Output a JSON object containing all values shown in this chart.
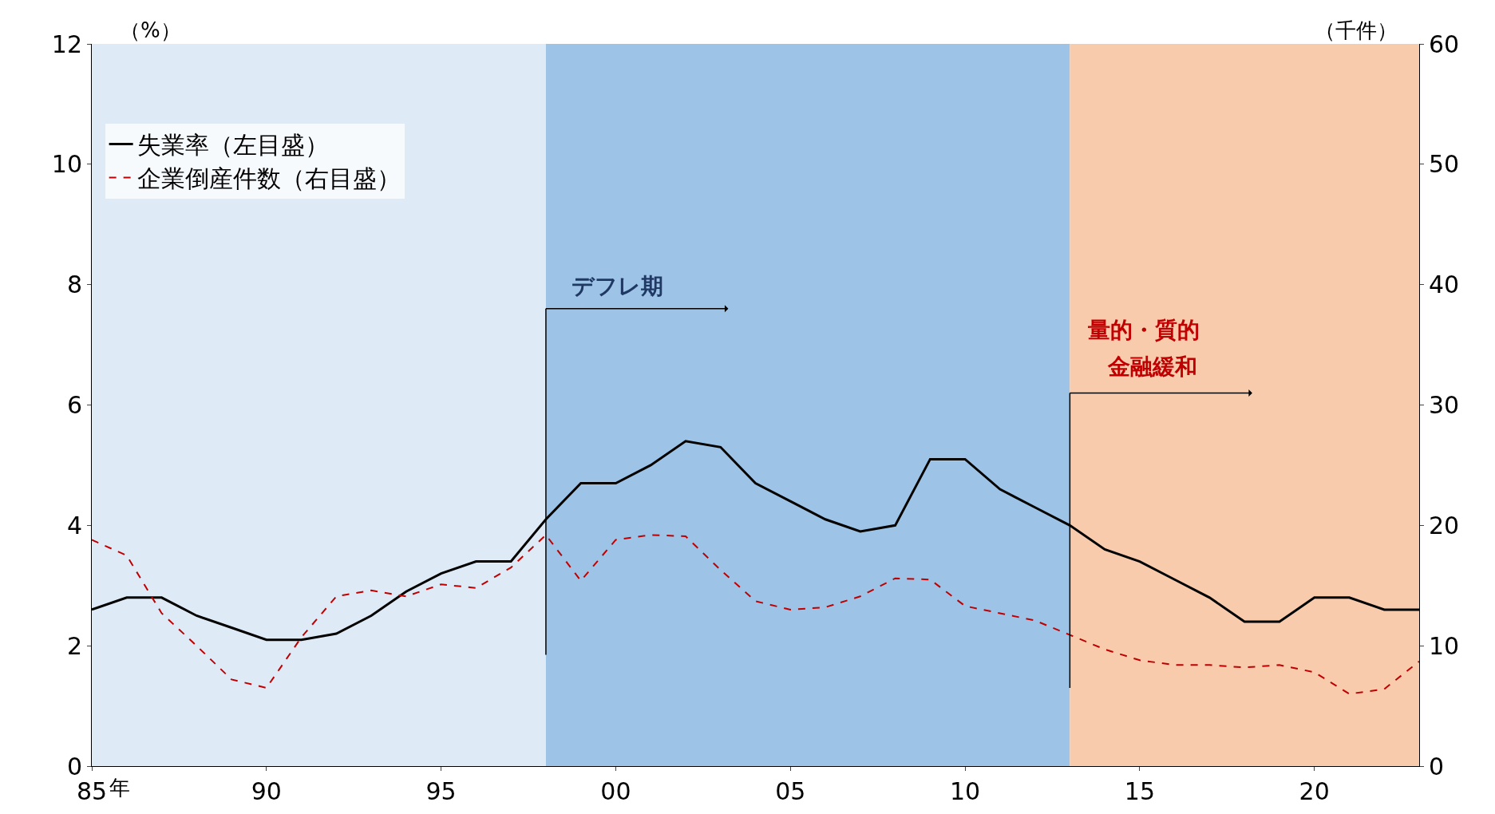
{
  "chart_data": {
    "type": "line",
    "ylabel": "（%）",
    "y2label": "（千件）",
    "x": [
      1985,
      1986,
      1987,
      1988,
      1989,
      1990,
      1991,
      1992,
      1993,
      1994,
      1995,
      1996,
      1997,
      1998,
      1999,
      2000,
      2001,
      2002,
      2003,
      2004,
      2005,
      2006,
      2007,
      2008,
      2009,
      2010,
      2011,
      2012,
      2013,
      2014,
      2015,
      2016,
      2017,
      2018,
      2019,
      2020,
      2021,
      2022,
      2023
    ],
    "series": [
      {
        "name": "失業率（左目盛）",
        "color": "#000000",
        "line_style": "solid",
        "values": [
          2.6,
          2.8,
          2.8,
          2.5,
          2.3,
          2.1,
          2.1,
          2.2,
          2.5,
          2.9,
          3.2,
          3.4,
          3.4,
          4.1,
          4.7,
          4.7,
          5.0,
          5.4,
          5.3,
          4.7,
          4.4,
          4.1,
          3.9,
          4.0,
          5.1,
          5.1,
          4.6,
          4.3,
          4.0,
          3.6,
          3.4,
          3.1,
          2.8,
          2.4,
          2.4,
          2.8,
          2.8,
          2.6,
          2.6
        ]
      },
      {
        "name": "企業倒産件数（右目盛）",
        "color": "#c00000",
        "line_style": "dashed",
        "axis": "y2",
        "values": [
          18.8,
          17.5,
          12.7,
          10.0,
          7.2,
          6.5,
          10.7,
          14.1,
          14.6,
          14.1,
          15.1,
          14.8,
          16.5,
          19.2,
          15.4,
          18.8,
          19.2,
          19.1,
          16.3,
          13.7,
          13.0,
          13.2,
          14.1,
          15.6,
          15.5,
          13.3,
          12.7,
          12.1,
          10.9,
          9.7,
          8.8,
          8.4,
          8.4,
          8.2,
          8.4,
          7.8,
          6.0,
          6.4,
          8.7
        ]
      }
    ],
    "xlim": [
      1985,
      2023
    ],
    "xlabel": "年",
    "xticks": [
      {
        "value": 1985,
        "label": "85"
      },
      {
        "value": 1990,
        "label": "90"
      },
      {
        "value": 1995,
        "label": "95"
      },
      {
        "value": 2000,
        "label": "00"
      },
      {
        "value": 2005,
        "label": "05"
      },
      {
        "value": 2010,
        "label": "10"
      },
      {
        "value": 2015,
        "label": "15"
      },
      {
        "value": 2020,
        "label": "20"
      }
    ],
    "ylim": [
      0,
      12
    ],
    "yticks": [
      0,
      2,
      4,
      6,
      8,
      10,
      12
    ],
    "y2lim": [
      0,
      60
    ],
    "y2ticks": [
      0,
      10,
      20,
      30,
      40,
      50,
      60
    ],
    "bands": [
      {
        "axis": "x",
        "from": 1985,
        "to": 1998,
        "color": "#deeaf6"
      },
      {
        "axis": "x",
        "from": 1998,
        "to": 2013,
        "color": "#9dc3e6"
      },
      {
        "axis": "x",
        "from": 2013,
        "to": 2023,
        "color": "#f8cbad"
      }
    ],
    "annotations": [
      {
        "text": "デフレ期",
        "x": 1998,
        "y": 7.6
      },
      {
        "text": "量的・質的",
        "x": 2013,
        "y": 6.2
      },
      "金融緩和"
    ],
    "ref_lines": [
      {
        "axis": "x",
        "value": 1998
      },
      {
        "axis": "x",
        "value": 2013
      }
    ],
    "legend": "top left",
    "grid": false
  }
}
